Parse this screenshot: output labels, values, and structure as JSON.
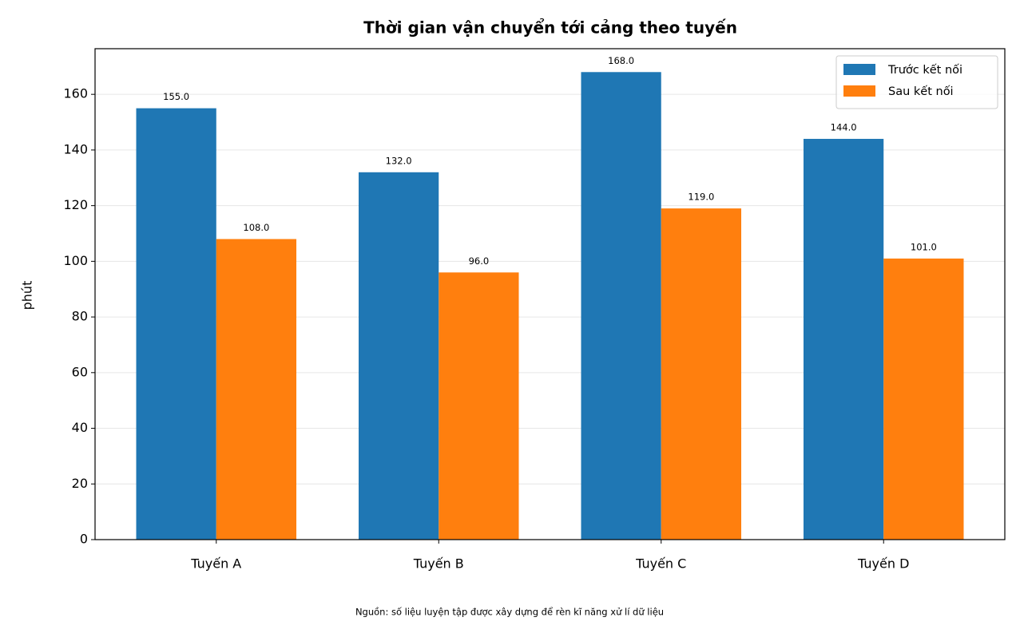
{
  "chart_data": {
    "type": "bar",
    "title": "Thời gian vận chuyển tới cảng theo tuyến",
    "y_label": "phút",
    "caption": "Nguồn: số liệu luyện tập được xây dựng để rèn kĩ năng xử lí dữ liệu",
    "categories": [
      "Tuyến A",
      "Tuyến B",
      "Tuyến C",
      "Tuyến D"
    ],
    "series": [
      {
        "name": "Trước kết nối",
        "color": "#1f77b4",
        "values": [
          155,
          132,
          168,
          144
        ],
        "value_labels": [
          "155.0",
          "132.0",
          "168.0",
          "144.0"
        ]
      },
      {
        "name": "Sau kết nối",
        "color": "#ff7f0e",
        "values": [
          108,
          96,
          119,
          101
        ],
        "value_labels": [
          "108.0",
          "96.0",
          "119.0",
          "101.0"
        ]
      }
    ],
    "ylim": [
      0,
      176.4
    ],
    "yticks": [
      0,
      20,
      40,
      60,
      80,
      100,
      120,
      140,
      160
    ],
    "grid": true,
    "legend": "upper right"
  }
}
